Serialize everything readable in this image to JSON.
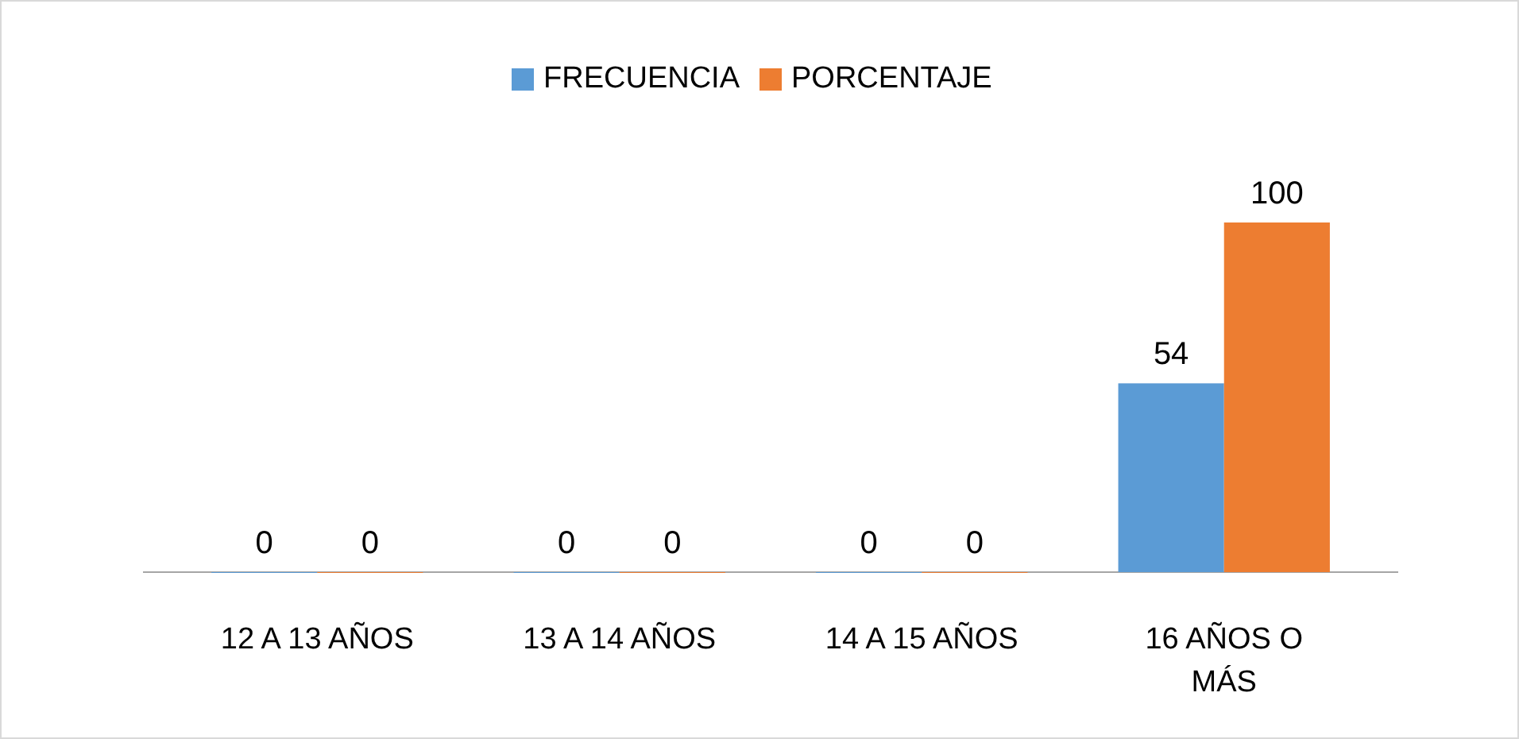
{
  "chart_data": {
    "type": "bar",
    "categories": [
      "12 A 13 AÑOS",
      "13 A 14 AÑOS",
      "14 A 15 AÑOS",
      "16 AÑOS O MÁS"
    ],
    "series": [
      {
        "name": "FRECUENCIA",
        "color": "#5b9bd5",
        "values": [
          0,
          0,
          0,
          54
        ]
      },
      {
        "name": "PORCENTAJE",
        "color": "#ed7d31",
        "values": [
          0,
          0,
          0,
          100
        ]
      }
    ],
    "data_labels": true,
    "legend": "top"
  }
}
